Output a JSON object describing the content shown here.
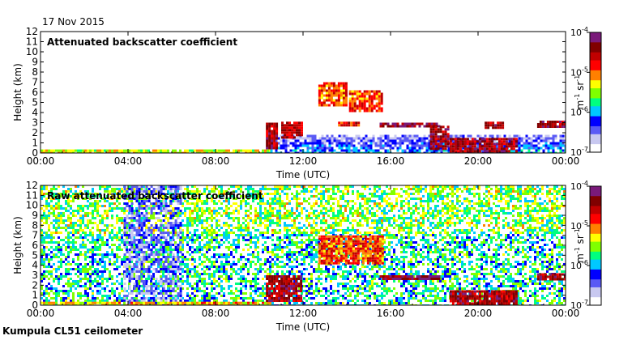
{
  "date": "17 Nov 2015",
  "footer": "Kumpula CL51 ceilometer",
  "colors": {
    "colormap": [
      "#ffffff",
      "#c8c8f0",
      "#5a5af5",
      "#0000ff",
      "#00c8ff",
      "#00ff80",
      "#80ff00",
      "#ffff00",
      "#ff8000",
      "#ff0000",
      "#c00000",
      "#800000",
      "#7a1a7a"
    ]
  },
  "chart_data": [
    {
      "type": "heatmap",
      "title": "Attenuated backscatter coefficient",
      "xlabel": "Time (UTC)",
      "ylabel": "Height (km)",
      "xlim": [
        0,
        24
      ],
      "ylim": [
        0,
        12
      ],
      "x_tick_labels": [
        "00:00",
        "04:00",
        "08:00",
        "12:00",
        "16:00",
        "20:00",
        "00:00"
      ],
      "y_tick_labels": [
        "0",
        "1",
        "2",
        "3",
        "4",
        "5",
        "6",
        "7",
        "8",
        "9",
        "10",
        "11",
        "12"
      ],
      "colorbar": {
        "unit_base": "m",
        "unit_base_exp": "-1",
        "unit_sr": "sr",
        "unit_sr_exp": "-1",
        "ticks": [
          {
            "base": "10",
            "exp": "-4"
          },
          {
            "base": "10",
            "exp": "-5"
          },
          {
            "base": "10",
            "exp": "-6"
          },
          {
            "base": "10",
            "exp": "-7"
          }
        ]
      },
      "features": [
        {
          "kind": "surface_layer",
          "t0": 0,
          "t1": 10.5,
          "h0": 0,
          "h1": 0.35,
          "level": 0.55
        },
        {
          "kind": "boundary_layer",
          "t0": 10.5,
          "t1": 24,
          "h0": 0,
          "h1": 1.8,
          "level": 0.3
        },
        {
          "kind": "cloud",
          "t0": 10.3,
          "t1": 10.8,
          "h0": 0.4,
          "h1": 3.0,
          "level": 0.85
        },
        {
          "kind": "cloud",
          "t0": 11.0,
          "t1": 11.9,
          "h0": 1.6,
          "h1": 3.1,
          "level": 0.8
        },
        {
          "kind": "cloud",
          "t0": 12.7,
          "t1": 14.0,
          "h0": 4.8,
          "h1": 7.0,
          "level": 0.7
        },
        {
          "kind": "cloud",
          "t0": 14.1,
          "t1": 15.6,
          "h0": 4.1,
          "h1": 6.2,
          "level": 0.7
        },
        {
          "kind": "cloud",
          "t0": 13.6,
          "t1": 14.5,
          "h0": 2.7,
          "h1": 3.1,
          "level": 0.75
        },
        {
          "kind": "cloud",
          "t0": 15.5,
          "t1": 18.2,
          "h0": 2.6,
          "h1": 3.0,
          "level": 0.9
        },
        {
          "kind": "cloud",
          "t0": 17.8,
          "t1": 18.6,
          "h0": 0.5,
          "h1": 2.7,
          "level": 0.85
        },
        {
          "kind": "cloud",
          "t0": 18.7,
          "t1": 21.8,
          "h0": 0.0,
          "h1": 1.5,
          "level": 0.85
        },
        {
          "kind": "cloud",
          "t0": 20.3,
          "t1": 21.1,
          "h0": 2.5,
          "h1": 3.1,
          "level": 0.85
        },
        {
          "kind": "cloud",
          "t0": 22.7,
          "t1": 24.0,
          "h0": 2.7,
          "h1": 3.2,
          "level": 0.85
        }
      ]
    },
    {
      "type": "heatmap",
      "title": "Raw attenuated backscatter coefficient",
      "xlabel": "Time (UTC)",
      "ylabel": "Height (km)",
      "xlim": [
        0,
        24
      ],
      "ylim": [
        0,
        12
      ],
      "x_tick_labels": [
        "00:00",
        "04:00",
        "08:00",
        "12:00",
        "16:00",
        "20:00",
        "00:00"
      ],
      "y_tick_labels": [
        "0",
        "1",
        "2",
        "3",
        "4",
        "5",
        "6",
        "7",
        "8",
        "9",
        "10",
        "11",
        "12"
      ],
      "colorbar": {
        "unit_base": "m",
        "unit_base_exp": "-1",
        "unit_sr": "sr",
        "unit_sr_exp": "-1",
        "ticks": [
          {
            "base": "10",
            "exp": "-4"
          },
          {
            "base": "10",
            "exp": "-5"
          },
          {
            "base": "10",
            "exp": "-6"
          },
          {
            "base": "10",
            "exp": "-7"
          }
        ]
      },
      "features": [
        {
          "kind": "noise_background",
          "t0": 0,
          "t1": 24,
          "h0": 0,
          "h1": 12,
          "level": 0.45
        },
        {
          "kind": "quiet_band",
          "t0": 3.8,
          "t1": 6.4,
          "h0": 0,
          "h1": 12,
          "level": 0.22
        },
        {
          "kind": "surface_layer",
          "t0": 0,
          "t1": 10.5,
          "h0": 0,
          "h1": 0.35,
          "level": 0.6
        },
        {
          "kind": "cloud",
          "t0": 12.7,
          "t1": 15.6,
          "h0": 4.2,
          "h1": 7.0,
          "level": 0.7
        },
        {
          "kind": "cloud",
          "t0": 15.5,
          "t1": 18.2,
          "h0": 2.6,
          "h1": 3.0,
          "level": 0.9
        },
        {
          "kind": "cloud",
          "t0": 18.7,
          "t1": 21.8,
          "h0": 0.0,
          "h1": 1.5,
          "level": 0.85
        },
        {
          "kind": "cloud",
          "t0": 10.3,
          "t1": 11.9,
          "h0": 0.4,
          "h1": 3.0,
          "level": 0.85
        },
        {
          "kind": "cloud",
          "t0": 22.7,
          "t1": 24.0,
          "h0": 2.7,
          "h1": 3.2,
          "level": 0.85
        }
      ]
    }
  ]
}
